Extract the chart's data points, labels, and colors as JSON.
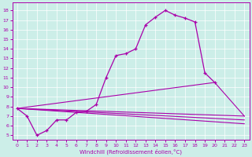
{
  "xlabel": "Windchill (Refroidissement éolien,°C)",
  "background_color": "#cceee8",
  "line_color": "#aa00aa",
  "xlim": [
    -0.5,
    23.5
  ],
  "ylim": [
    4.5,
    18.8
  ],
  "xticks": [
    0,
    1,
    2,
    3,
    4,
    5,
    6,
    7,
    8,
    9,
    10,
    11,
    12,
    13,
    14,
    15,
    16,
    17,
    18,
    19,
    20,
    21,
    22,
    23
  ],
  "yticks": [
    5,
    6,
    7,
    8,
    9,
    10,
    11,
    12,
    13,
    14,
    15,
    16,
    17,
    18
  ],
  "main_curve_x": [
    0,
    1,
    2,
    3,
    4,
    5,
    6,
    7,
    8,
    9,
    10,
    11,
    12,
    13,
    14,
    15,
    16,
    17,
    18,
    19,
    20
  ],
  "main_curve_y": [
    7.8,
    7.0,
    5.0,
    5.5,
    6.6,
    6.6,
    7.4,
    7.5,
    8.2,
    11.0,
    13.3,
    13.5,
    14.0,
    16.5,
    17.3,
    18.0,
    17.5,
    17.2,
    16.8,
    11.5,
    10.5
  ],
  "fan_lines": [
    {
      "x": [
        0,
        20,
        23
      ],
      "y": [
        7.8,
        10.5,
        7.0
      ]
    },
    {
      "x": [
        0,
        23
      ],
      "y": [
        7.8,
        7.0
      ]
    },
    {
      "x": [
        0,
        23
      ],
      "y": [
        7.8,
        6.6
      ]
    },
    {
      "x": [
        0,
        23
      ],
      "y": [
        7.8,
        6.2
      ]
    }
  ]
}
